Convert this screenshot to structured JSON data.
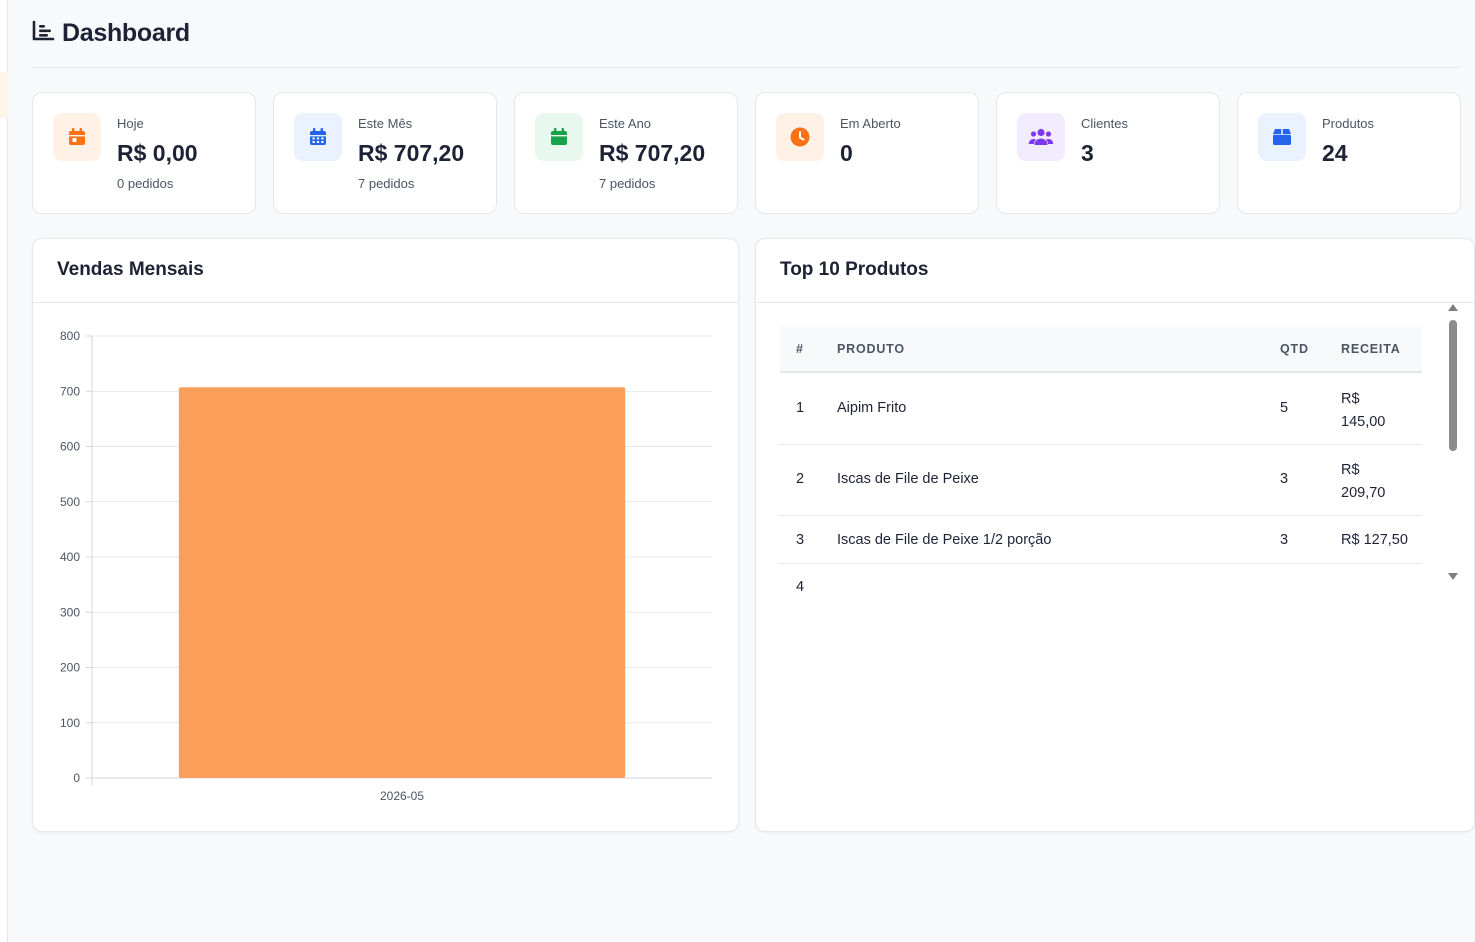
{
  "header": {
    "title": "Dashboard",
    "icon": "chart-list-icon"
  },
  "stats": [
    {
      "label": "Hoje",
      "value": "R$ 0,00",
      "sub": "0 pedidos",
      "icon": "calendar-day-icon",
      "color": "#f97316",
      "bg": "#fff1e6"
    },
    {
      "label": "Este Mês",
      "value": "R$ 707,20",
      "sub": "7 pedidos",
      "icon": "calendar-grid-icon",
      "color": "#2563eb",
      "bg": "#eaf1ff"
    },
    {
      "label": "Este Ano",
      "value": "R$ 707,20",
      "sub": "7 pedidos",
      "icon": "calendar-icon",
      "color": "#16a34a",
      "bg": "#e8f8ee"
    },
    {
      "label": "Em Aberto",
      "value": "0",
      "sub": "",
      "icon": "clock-icon",
      "color": "#f97316",
      "bg": "#fff1e6"
    },
    {
      "label": "Clientes",
      "value": "3",
      "sub": "",
      "icon": "users-icon",
      "color": "#7c3aed",
      "bg": "#f3ecff"
    },
    {
      "label": "Produtos",
      "value": "24",
      "sub": "",
      "icon": "box-icon",
      "color": "#2563eb",
      "bg": "#eaf1ff"
    }
  ],
  "sales_panel": {
    "title": "Vendas Mensais"
  },
  "chart_data": {
    "type": "bar",
    "categories": [
      "2026-05"
    ],
    "values": [
      707.2
    ],
    "title": "",
    "xlabel": "",
    "ylabel": "",
    "ylim": [
      0,
      800
    ],
    "yticks": [
      0,
      100,
      200,
      300,
      400,
      500,
      600,
      700,
      800
    ],
    "grid": true,
    "bar_color": "#fb9f5b"
  },
  "top_panel": {
    "title": "Top 10 Produtos",
    "columns": {
      "rank": "#",
      "product": "PRODUTO",
      "qty": "QTD",
      "revenue": "RECEITA"
    },
    "rows": [
      {
        "rank": "1",
        "product": "Aipim Frito",
        "qty": "5",
        "revenue": "R$ 145,00"
      },
      {
        "rank": "2",
        "product": "Iscas de File de Peixe",
        "qty": "3",
        "revenue": "R$ 209,70"
      },
      {
        "rank": "3",
        "product": "Iscas de File de Peixe 1/2 porção",
        "qty": "3",
        "revenue": "R$ 127,50"
      },
      {
        "rank": "4",
        "product": "",
        "qty": "",
        "revenue": ""
      }
    ]
  }
}
